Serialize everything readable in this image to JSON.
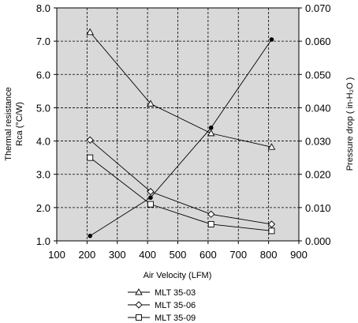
{
  "chart_data": {
    "type": "line",
    "xlabel": "Air Velocity (LFM)",
    "ylabel_left_line1": "Thermal resistance",
    "ylabel_left_line2": "Rca (°C/W)",
    "ylabel_right": "Pressure drop ( in-H₂O )",
    "xlim": [
      100,
      900
    ],
    "xticks": [
      "100",
      "200",
      "300",
      "400",
      "500",
      "600",
      "700",
      "800",
      "900"
    ],
    "ylim_left": [
      1.0,
      8.0
    ],
    "yticks_left": [
      "1.0",
      "2.0",
      "3.0",
      "4.0",
      "5.0",
      "6.0",
      "7.0",
      "8.0"
    ],
    "ylim_right": [
      0.0,
      0.07
    ],
    "yticks_right": [
      "0.000",
      "0.010",
      "0.020",
      "0.030",
      "0.040",
      "0.050",
      "0.060",
      "0.070"
    ],
    "grid": true,
    "legend_position": "bottom-center",
    "series": [
      {
        "name": "MLT 35-03",
        "marker": "triangle",
        "axis": "left",
        "x": [
          210,
          410,
          610,
          810
        ],
        "values": [
          7.27,
          5.12,
          4.23,
          3.82
        ]
      },
      {
        "name": "MLT 35-06",
        "marker": "diamond",
        "axis": "left",
        "x": [
          210,
          410,
          610,
          810
        ],
        "values": [
          4.03,
          2.48,
          1.8,
          1.5
        ]
      },
      {
        "name": "MLT 35-09",
        "marker": "square",
        "axis": "left",
        "x": [
          210,
          410,
          610,
          810
        ],
        "values": [
          3.5,
          2.1,
          1.5,
          1.3
        ]
      },
      {
        "marker": "dot",
        "axis": "right",
        "x": [
          210,
          410,
          610,
          810
        ],
        "values": [
          0.0015,
          0.013,
          0.034,
          0.0605
        ]
      }
    ]
  }
}
